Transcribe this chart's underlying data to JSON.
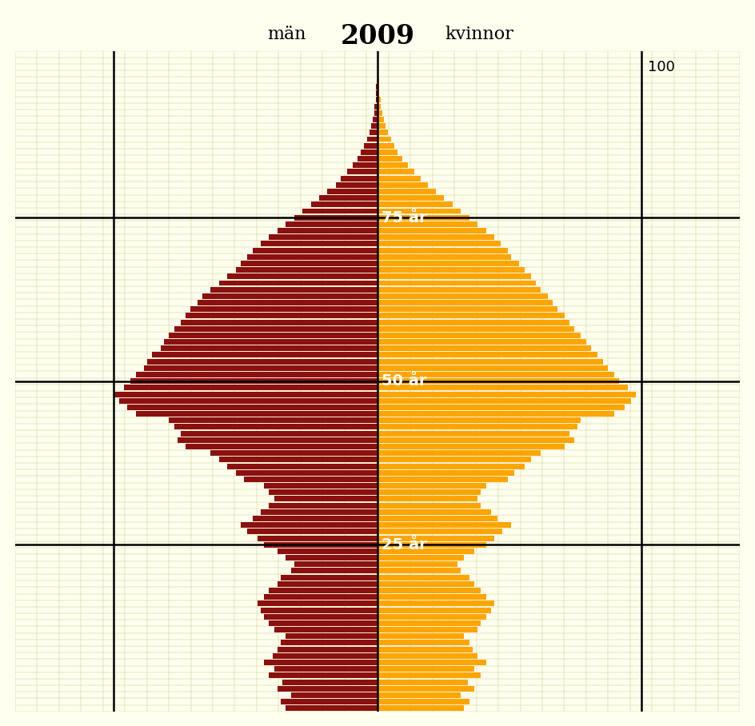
{
  "title_year": "2009",
  "title_men": "män",
  "title_women": "kvinnor",
  "background_color": "#FFFFF0",
  "grid_color": "#CCCC88",
  "men_color": "#8B1010",
  "women_color": "#FFA500",
  "label_75": "75 år",
  "label_50": "50 år",
  "label_25": "25 år",
  "label_100": "100",
  "max_val": 165,
  "men": [
    55,
    58,
    52,
    60,
    57,
    65,
    62,
    68,
    63,
    60,
    58,
    55,
    62,
    65,
    68,
    70,
    72,
    68,
    65,
    60,
    58,
    52,
    50,
    55,
    60,
    68,
    72,
    78,
    82,
    75,
    70,
    65,
    62,
    65,
    68,
    80,
    85,
    90,
    95,
    100,
    115,
    120,
    118,
    122,
    125,
    145,
    150,
    155,
    158,
    152,
    148,
    145,
    140,
    138,
    135,
    130,
    128,
    125,
    122,
    118,
    115,
    112,
    108,
    105,
    100,
    95,
    90,
    85,
    82,
    78,
    75,
    70,
    65,
    60,
    55,
    50,
    45,
    40,
    35,
    30,
    25,
    22,
    18,
    15,
    12,
    10,
    8,
    6,
    5,
    4,
    3,
    2,
    2,
    1,
    1,
    1,
    0,
    0,
    0,
    0,
    0
  ],
  "women": [
    52,
    55,
    50,
    58,
    54,
    62,
    58,
    65,
    60,
    57,
    55,
    52,
    60,
    62,
    65,
    68,
    70,
    65,
    62,
    58,
    55,
    50,
    48,
    52,
    58,
    65,
    70,
    75,
    80,
    72,
    68,
    62,
    60,
    62,
    65,
    78,
    82,
    88,
    92,
    98,
    112,
    118,
    115,
    120,
    122,
    142,
    148,
    152,
    155,
    150,
    145,
    142,
    138,
    135,
    132,
    128,
    125,
    122,
    118,
    115,
    112,
    108,
    105,
    102,
    98,
    95,
    92,
    88,
    85,
    80,
    78,
    74,
    70,
    65,
    60,
    55,
    50,
    45,
    40,
    35,
    30,
    26,
    22,
    18,
    15,
    12,
    10,
    8,
    6,
    5,
    4,
    3,
    2,
    2,
    1,
    1,
    1,
    0,
    0,
    0,
    0
  ]
}
